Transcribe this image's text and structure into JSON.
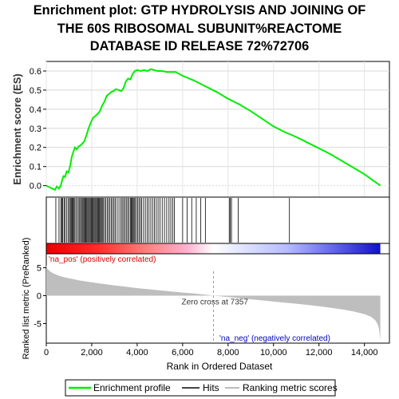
{
  "chart_data": {
    "type": "line",
    "title_lines": [
      "Enrichment plot: GTP HYDROLYSIS AND JOINING OF",
      "THE 60S RIBOSOMAL SUBUNIT%REACTOME",
      "DATABASE ID RELEASE 72%72706"
    ],
    "es_ylabel": "Enrichment score (ES)",
    "es_yticks": [
      0.0,
      0.1,
      0.2,
      0.3,
      0.4,
      0.5,
      0.6
    ],
    "es_ylim": [
      -0.06,
      0.65
    ],
    "xlim": [
      0,
      15100
    ],
    "xticks": [
      0,
      2000,
      4000,
      6000,
      8000,
      10000,
      12000,
      14000
    ],
    "xtick_labels": [
      "0",
      "2,000",
      "4,000",
      "6,000",
      "8,000",
      "10,000",
      "12,000",
      "14,000"
    ],
    "xlabel": "Rank in Ordered Dataset",
    "metric_ylabel": "Ranked list metric (PreRanked)",
    "metric_yticks": [
      5,
      0,
      -5
    ],
    "metric_ylim": [
      -8.5,
      7.5
    ],
    "zero_cross_label": "Zero cross at 7357",
    "zero_cross_rank": 7357,
    "pos_label": "'na_pos' (positively correlated)",
    "neg_label": "'na_neg' (negatively correlated)",
    "es_profile": [
      [
        0,
        0.0
      ],
      [
        200,
        -0.012
      ],
      [
        380,
        -0.022
      ],
      [
        460,
        -0.005
      ],
      [
        560,
        -0.015
      ],
      [
        640,
        0.0
      ],
      [
        700,
        0.03
      ],
      [
        760,
        0.05
      ],
      [
        820,
        0.045
      ],
      [
        900,
        0.075
      ],
      [
        980,
        0.07
      ],
      [
        1060,
        0.11
      ],
      [
        1120,
        0.15
      ],
      [
        1200,
        0.18
      ],
      [
        1260,
        0.2
      ],
      [
        1340,
        0.19
      ],
      [
        1420,
        0.205
      ],
      [
        1500,
        0.21
      ],
      [
        1580,
        0.22
      ],
      [
        1660,
        0.23
      ],
      [
        1760,
        0.26
      ],
      [
        1860,
        0.3
      ],
      [
        1960,
        0.33
      ],
      [
        2060,
        0.355
      ],
      [
        2160,
        0.365
      ],
      [
        2260,
        0.375
      ],
      [
        2360,
        0.39
      ],
      [
        2460,
        0.42
      ],
      [
        2560,
        0.44
      ],
      [
        2660,
        0.47
      ],
      [
        2760,
        0.48
      ],
      [
        2860,
        0.49
      ],
      [
        2960,
        0.495
      ],
      [
        3060,
        0.505
      ],
      [
        3200,
        0.5
      ],
      [
        3300,
        0.495
      ],
      [
        3400,
        0.51
      ],
      [
        3500,
        0.545
      ],
      [
        3600,
        0.56
      ],
      [
        3700,
        0.555
      ],
      [
        3800,
        0.585
      ],
      [
        3900,
        0.6
      ],
      [
        4000,
        0.605
      ],
      [
        4150,
        0.6
      ],
      [
        4300,
        0.605
      ],
      [
        4450,
        0.6
      ],
      [
        4600,
        0.61
      ],
      [
        4750,
        0.605
      ],
      [
        4900,
        0.6
      ],
      [
        5100,
        0.6
      ],
      [
        5300,
        0.595
      ],
      [
        5500,
        0.595
      ],
      [
        5700,
        0.595
      ],
      [
        6000,
        0.575
      ],
      [
        6500,
        0.55
      ],
      [
        7000,
        0.52
      ],
      [
        7500,
        0.49
      ],
      [
        8000,
        0.455
      ],
      [
        8500,
        0.425
      ],
      [
        9000,
        0.39
      ],
      [
        9500,
        0.35
      ],
      [
        10000,
        0.31
      ],
      [
        10500,
        0.28
      ],
      [
        10700,
        0.27
      ],
      [
        11000,
        0.255
      ],
      [
        11500,
        0.225
      ],
      [
        12000,
        0.195
      ],
      [
        12500,
        0.165
      ],
      [
        13000,
        0.13
      ],
      [
        13500,
        0.095
      ],
      [
        14000,
        0.06
      ],
      [
        14400,
        0.025
      ],
      [
        14700,
        0.0
      ]
    ],
    "hit_ranks": [
      420,
      560,
      640,
      680,
      720,
      780,
      820,
      900,
      960,
      1020,
      1060,
      1100,
      1140,
      1180,
      1220,
      1260,
      1320,
      1380,
      1440,
      1480,
      1540,
      1580,
      1620,
      1660,
      1700,
      1740,
      1780,
      1820,
      1860,
      1900,
      1940,
      1980,
      2020,
      2060,
      2100,
      2140,
      2180,
      2220,
      2260,
      2300,
      2340,
      2380,
      2420,
      2460,
      2500,
      2560,
      2620,
      2680,
      2740,
      2800,
      2860,
      2920,
      2980,
      3040,
      3120,
      3200,
      3280,
      3340,
      3400,
      3460,
      3520,
      3580,
      3640,
      3700,
      3740,
      3780,
      3820,
      3860,
      3900,
      3960,
      4020,
      4080,
      4140,
      4200,
      4280,
      4360,
      4440,
      4520,
      4600,
      4680,
      4760,
      4840,
      4920,
      5000,
      5100,
      5200,
      5300,
      5400,
      5480,
      5560,
      5640,
      6000,
      6200,
      6400,
      6600,
      6800,
      7000,
      8050,
      8100,
      8150,
      8450,
      10700
    ],
    "metric_curve": [
      [
        0,
        5.5
      ],
      [
        50,
        4.8
      ],
      [
        150,
        4.4
      ],
      [
        300,
        4.0
      ],
      [
        600,
        3.5
      ],
      [
        1000,
        3.1
      ],
      [
        1500,
        2.7
      ],
      [
        2000,
        2.4
      ],
      [
        2500,
        2.1
      ],
      [
        3000,
        1.85
      ],
      [
        3500,
        1.6
      ],
      [
        4000,
        1.35
      ],
      [
        4500,
        1.15
      ],
      [
        5000,
        0.95
      ],
      [
        5500,
        0.75
      ],
      [
        6000,
        0.55
      ],
      [
        6500,
        0.38
      ],
      [
        7000,
        0.18
      ],
      [
        7357,
        0.0
      ],
      [
        8000,
        -0.25
      ],
      [
        8500,
        -0.45
      ],
      [
        9000,
        -0.65
      ],
      [
        9500,
        -0.85
      ],
      [
        10000,
        -1.05
      ],
      [
        10500,
        -1.25
      ],
      [
        11000,
        -1.45
      ],
      [
        11500,
        -1.65
      ],
      [
        12000,
        -1.9
      ],
      [
        12500,
        -2.15
      ],
      [
        13000,
        -2.45
      ],
      [
        13500,
        -2.8
      ],
      [
        14000,
        -3.3
      ],
      [
        14300,
        -3.8
      ],
      [
        14500,
        -4.5
      ],
      [
        14600,
        -5.3
      ],
      [
        14650,
        -6.2
      ],
      [
        14700,
        -8.0
      ]
    ],
    "colors": {
      "es_line": "#00ee00",
      "hits": "#000000",
      "metric_fill": "#bebebe",
      "pos_text": "#dd0000",
      "neg_text": "#0000cc",
      "pos_gradient": [
        "#e80000",
        "#ff4d4d",
        "#ff9a9a",
        "#ffd0e8",
        "#ffffff"
      ],
      "neg_gradient": [
        "#ffffff",
        "#d0d8ff",
        "#9aa8ff",
        "#4a4aee",
        "#1010cc"
      ]
    },
    "legend": {
      "items": [
        "Enrichment profile",
        "Hits",
        "Ranking metric scores"
      ],
      "placement": "bottom"
    }
  }
}
